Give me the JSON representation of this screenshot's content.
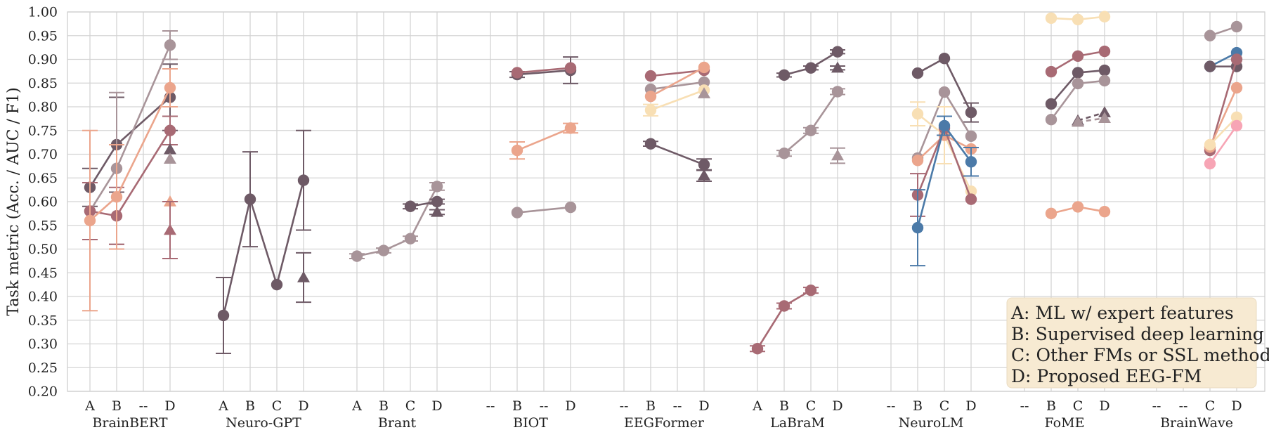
{
  "chart_data": {
    "type": "line",
    "ylabel": "Task metric (Acc. / AUC / F1)",
    "ylim": [
      0.2,
      1.0
    ],
    "yticks": [
      "0.20",
      "0.25",
      "0.30",
      "0.35",
      "0.40",
      "0.45",
      "0.50",
      "0.55",
      "0.60",
      "0.65",
      "0.70",
      "0.75",
      "0.80",
      "0.85",
      "0.90",
      "0.95",
      "1.00"
    ],
    "legend": {
      "placement": "bottom-right",
      "entries": [
        "A: ML w/ expert features",
        "B: Supervised deep learning",
        "C: Other FMs or SSL methods",
        "D: Proposed EEG-FM"
      ]
    },
    "colors": {
      "dark": "#6e5a66",
      "rose": "#a86a74",
      "mauve": "#a89499",
      "salmon": "#eba58c",
      "cream": "#f8dfb4",
      "blue": "#4b7aa8",
      "pink": "#f7a5b5",
      "legend_bg": "#f7ead2"
    },
    "groups": [
      {
        "name": "BrainBERT",
        "categories": [
          "A",
          "B",
          "--",
          "D"
        ],
        "series": [
          {
            "color": "dark",
            "marker": "circle",
            "values": [
              0.63,
              0.72,
              null,
              0.82
            ],
            "err": [
              0.04,
              0.1,
              null,
              0.07
            ]
          },
          {
            "color": "mauve",
            "marker": "circle",
            "values": [
              0.58,
              0.67,
              null,
              0.93
            ],
            "err": [
              0.06,
              0.16,
              null,
              0.03
            ]
          },
          {
            "color": "rose",
            "marker": "circle",
            "values": [
              0.58,
              0.57,
              null,
              0.75
            ],
            "err": [
              0.06,
              0.06,
              null,
              0.03
            ]
          },
          {
            "color": "salmon",
            "marker": "circle",
            "values": [
              0.56,
              0.61,
              null,
              0.84
            ],
            "err": [
              0.19,
              0.11,
              null,
              0.04
            ]
          },
          {
            "color": "dark",
            "marker": "triangle",
            "values": [
              null,
              null,
              null,
              0.71
            ],
            "err": [
              null,
              null,
              null,
              0.0
            ]
          },
          {
            "color": "mauve",
            "marker": "triangle",
            "values": [
              null,
              null,
              null,
              0.69
            ],
            "err": [
              null,
              null,
              null,
              0.0
            ]
          },
          {
            "color": "salmon",
            "marker": "triangle",
            "values": [
              null,
              null,
              null,
              0.6
            ],
            "err": [
              null,
              null,
              null,
              0.0
            ]
          },
          {
            "color": "rose",
            "marker": "triangle",
            "values": [
              null,
              null,
              null,
              0.54
            ],
            "err": [
              null,
              null,
              null,
              0.06
            ]
          }
        ]
      },
      {
        "name": "Neuro-GPT",
        "categories": [
          "A",
          "B",
          "C",
          "D"
        ],
        "series": [
          {
            "color": "dark",
            "marker": "circle",
            "values": [
              0.36,
              0.605,
              0.425,
              0.645
            ],
            "err": [
              0.08,
              0.1,
              0.0,
              0.105
            ]
          },
          {
            "color": "dark",
            "marker": "triangle",
            "values": [
              null,
              null,
              null,
              0.44
            ],
            "err": [
              null,
              null,
              null,
              0.052
            ]
          }
        ]
      },
      {
        "name": "Brant",
        "categories": [
          "A",
          "B",
          "C",
          "D"
        ],
        "series": [
          {
            "color": "mauve",
            "marker": "circle",
            "values": [
              0.485,
              0.497,
              0.522,
              0.632
            ],
            "err": [
              0.005,
              0.005,
              0.005,
              0.008
            ]
          },
          {
            "color": "dark",
            "marker": "circle",
            "values": [
              null,
              null,
              0.59,
              0.6
            ],
            "err": [
              null,
              null,
              0.005,
              0.005
            ]
          },
          {
            "color": "dark",
            "marker": "triangle",
            "values": [
              null,
              null,
              null,
              0.578
            ],
            "err": [
              null,
              null,
              null,
              0.005
            ]
          }
        ]
      },
      {
        "name": "BIOT",
        "categories": [
          "--",
          "B",
          "--",
          "D"
        ],
        "series": [
          {
            "color": "dark",
            "marker": "circle",
            "values": [
              null,
              0.868,
              null,
              0.877
            ],
            "err": [
              null,
              0.006,
              null,
              0.028
            ]
          },
          {
            "color": "rose",
            "marker": "circle",
            "values": [
              null,
              0.872,
              null,
              0.882
            ],
            "err": [
              null,
              0.0,
              null,
              0.0
            ]
          },
          {
            "color": "salmon",
            "marker": "circle",
            "values": [
              null,
              0.708,
              null,
              0.755
            ],
            "err": [
              null,
              0.018,
              null,
              0.01
            ]
          },
          {
            "color": "mauve",
            "marker": "circle",
            "values": [
              null,
              0.577,
              null,
              0.588
            ],
            "err": [
              null,
              0.0,
              null,
              0.0
            ]
          }
        ]
      },
      {
        "name": "EEGFormer",
        "categories": [
          "--",
          "B",
          "--",
          "D"
        ],
        "series": [
          {
            "color": "rose",
            "marker": "circle",
            "values": [
              null,
              0.865,
              null,
              0.877
            ],
            "err": [
              null,
              0.0,
              null,
              0.0
            ]
          },
          {
            "color": "mauve",
            "marker": "circle",
            "values": [
              null,
              0.837,
              null,
              0.852
            ],
            "err": [
              null,
              0.0,
              null,
              0.0
            ]
          },
          {
            "color": "salmon",
            "marker": "circle",
            "values": [
              null,
              0.822,
              null,
              0.883
            ],
            "err": [
              null,
              0.0,
              null,
              0.0
            ]
          },
          {
            "color": "cream",
            "marker": "circle",
            "values": [
              null,
              0.793,
              null,
              0.835
            ],
            "err": [
              null,
              0.012,
              null,
              0.0
            ]
          },
          {
            "color": "dark",
            "marker": "circle",
            "values": [
              null,
              0.722,
              null,
              0.678
            ],
            "err": [
              null,
              0.005,
              null,
              0.012
            ]
          },
          {
            "color": "mauve",
            "marker": "triangle",
            "values": [
              null,
              null,
              null,
              0.828
            ],
            "err": [
              null,
              null,
              null,
              0.0
            ]
          },
          {
            "color": "dark",
            "marker": "triangle",
            "values": [
              null,
              null,
              null,
              0.655
            ],
            "err": [
              null,
              null,
              null,
              0.012
            ]
          }
        ]
      },
      {
        "name": "LaBraM",
        "categories": [
          "A",
          "B",
          "C",
          "D"
        ],
        "series": [
          {
            "color": "dark",
            "marker": "circle",
            "values": [
              null,
              0.867,
              0.882,
              0.916
            ],
            "err": [
              null,
              0.004,
              0.004,
              0.004
            ]
          },
          {
            "color": "mauve",
            "marker": "circle",
            "values": [
              null,
              0.702,
              0.75,
              0.832
            ],
            "err": [
              null,
              0.006,
              0.006,
              0.006
            ]
          },
          {
            "color": "rose",
            "marker": "circle",
            "values": [
              0.29,
              0.38,
              0.413,
              null
            ],
            "err": [
              0.006,
              0.006,
              0.006,
              null
            ]
          },
          {
            "color": "dark",
            "marker": "triangle",
            "values": [
              null,
              null,
              null,
              0.882
            ],
            "err": [
              null,
              null,
              null,
              0.004
            ]
          },
          {
            "color": "mauve",
            "marker": "triangle",
            "values": [
              null,
              null,
              null,
              0.697
            ],
            "err": [
              null,
              null,
              null,
              0.016
            ]
          }
        ]
      },
      {
        "name": "NeuroLM",
        "categories": [
          "--",
          "B",
          "C",
          "D"
        ],
        "series": [
          {
            "color": "dark",
            "marker": "circle",
            "values": [
              null,
              0.871,
              0.902,
              0.788
            ],
            "err": [
              null,
              0.0,
              0.0,
              0.02
            ]
          },
          {
            "color": "mauve",
            "marker": "circle",
            "values": [
              null,
              0.692,
              0.831,
              0.738
            ],
            "err": [
              null,
              0.0,
              0.0,
              0.0
            ]
          },
          {
            "color": "cream",
            "marker": "circle",
            "values": [
              null,
              0.785,
              0.74,
              0.622
            ],
            "err": [
              null,
              0.025,
              0.06,
              0.0
            ]
          },
          {
            "color": "salmon",
            "marker": "circle",
            "values": [
              null,
              0.687,
              0.74,
              0.711
            ],
            "err": [
              null,
              0.0,
              0.0,
              0.0
            ]
          },
          {
            "color": "rose",
            "marker": "circle",
            "values": [
              null,
              0.614,
              0.755,
              0.605
            ],
            "err": [
              null,
              0.045,
              0.0,
              0.0
            ]
          },
          {
            "color": "blue",
            "marker": "circle",
            "values": [
              null,
              0.545,
              0.76,
              0.684
            ],
            "err": [
              null,
              0.08,
              0.02,
              0.03
            ]
          }
        ]
      },
      {
        "name": "FoME",
        "categories": [
          "--",
          "B",
          "C",
          "D"
        ],
        "series": [
          {
            "color": "cream",
            "marker": "circle",
            "values": [
              null,
              0.987,
              0.984,
              0.99
            ],
            "err": [
              null,
              0.0,
              0.0,
              0.0
            ]
          },
          {
            "color": "rose",
            "marker": "circle",
            "values": [
              null,
              0.874,
              0.907,
              0.917
            ],
            "err": [
              null,
              0.0,
              0.0,
              0.0
            ]
          },
          {
            "color": "dark",
            "marker": "circle",
            "values": [
              null,
              0.806,
              0.872,
              0.877
            ],
            "err": [
              null,
              0.0,
              0.0,
              0.0
            ]
          },
          {
            "color": "mauve",
            "marker": "circle",
            "values": [
              null,
              0.773,
              0.849,
              0.855
            ],
            "err": [
              null,
              0.0,
              0.0,
              0.0
            ]
          },
          {
            "color": "salmon",
            "marker": "circle",
            "values": [
              null,
              0.575,
              0.589,
              0.579
            ],
            "err": [
              null,
              0.0,
              0.0,
              0.0
            ]
          },
          {
            "color": "dark",
            "marker": "triangle",
            "dashed": true,
            "values": [
              null,
              null,
              0.771,
              0.788
            ],
            "err": [
              null,
              null,
              0.0,
              0.0
            ]
          },
          {
            "color": "mauve",
            "marker": "triangle",
            "dashed": true,
            "values": [
              null,
              null,
              0.768,
              0.776
            ],
            "err": [
              null,
              null,
              0.0,
              0.0
            ]
          }
        ]
      },
      {
        "name": "BrainWave",
        "categories": [
          "--",
          "--",
          "C",
          "D"
        ],
        "series": [
          {
            "color": "mauve",
            "marker": "circle",
            "values": [
              null,
              null,
              0.95,
              0.969
            ],
            "err": [
              null,
              null,
              0.0,
              0.0
            ]
          },
          {
            "color": "blue",
            "marker": "circle",
            "values": [
              null,
              null,
              0.885,
              0.914
            ],
            "err": [
              null,
              null,
              0.0,
              0.0
            ]
          },
          {
            "color": "dark",
            "marker": "circle",
            "values": [
              null,
              null,
              0.885,
              0.885
            ],
            "err": [
              null,
              null,
              0.0,
              0.0
            ]
          },
          {
            "color": "rose",
            "marker": "circle",
            "values": [
              null,
              null,
              0.708,
              0.9
            ],
            "err": [
              null,
              null,
              0.0,
              0.0
            ]
          },
          {
            "color": "salmon",
            "marker": "circle",
            "values": [
              null,
              null,
              0.715,
              0.84
            ],
            "err": [
              null,
              null,
              0.0,
              0.0
            ]
          },
          {
            "color": "cream",
            "marker": "circle",
            "values": [
              null,
              null,
              0.72,
              0.778
            ],
            "err": [
              null,
              null,
              0.0,
              0.0
            ]
          },
          {
            "color": "pink",
            "marker": "circle",
            "values": [
              null,
              null,
              0.68,
              0.76
            ],
            "err": [
              null,
              null,
              0.0,
              0.0
            ]
          }
        ]
      }
    ]
  }
}
